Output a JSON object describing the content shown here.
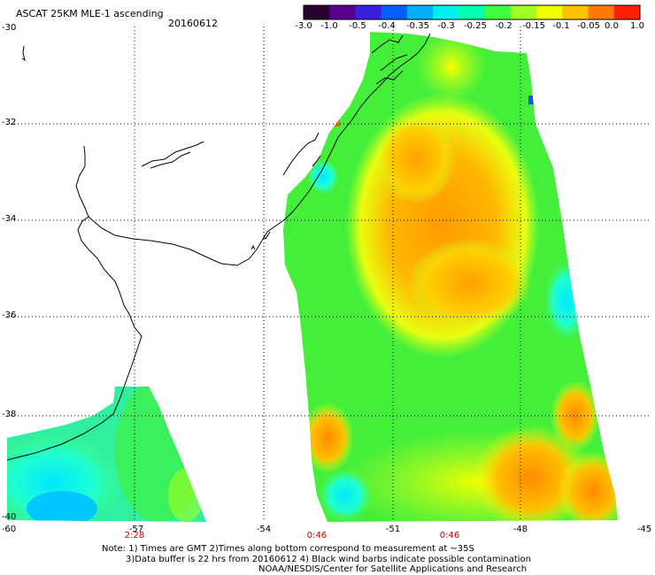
{
  "header": {
    "title": "ASCAT 25KM MLE-1 ascending",
    "date": "20160612"
  },
  "colorbar": {
    "labels": [
      "-3.0",
      "-1.0",
      "-0.5",
      "-0.4",
      "-0.35",
      "-0.3",
      "-0.25",
      "-0.2",
      "-0.15",
      "-0.1",
      "-0.05",
      "0.0",
      "1.0"
    ],
    "colors": [
      "#2a0030",
      "#5a0090",
      "#3a1fe0",
      "#0060ff",
      "#00b0ff",
      "#00f0f0",
      "#00ffb0",
      "#40ff40",
      "#a0ff20",
      "#f0ff00",
      "#ffc000",
      "#ff7a00",
      "#ff2000"
    ]
  },
  "axes": {
    "lat_labels": [
      "-30",
      "-32",
      "-34",
      "-36",
      "-38",
      "-40"
    ],
    "lon_labels": [
      "-60",
      "-57",
      "-54",
      "-51",
      "-48",
      "-45"
    ],
    "time_labels": [
      "2:28",
      "0:46",
      "0:46"
    ],
    "time_color": "#d00000",
    "grid": "dotted"
  },
  "notes": {
    "line1": "Note: 1) Times are GMT 2)Times along bottom correspond to measurement at ~35S",
    "line2": "3)Data buffer is 22 hrs from 20160612 4) Black wind barbs indicate possible contamination",
    "line3": "NOAA/NESDIS/Center for Satellite Applications and Research"
  }
}
